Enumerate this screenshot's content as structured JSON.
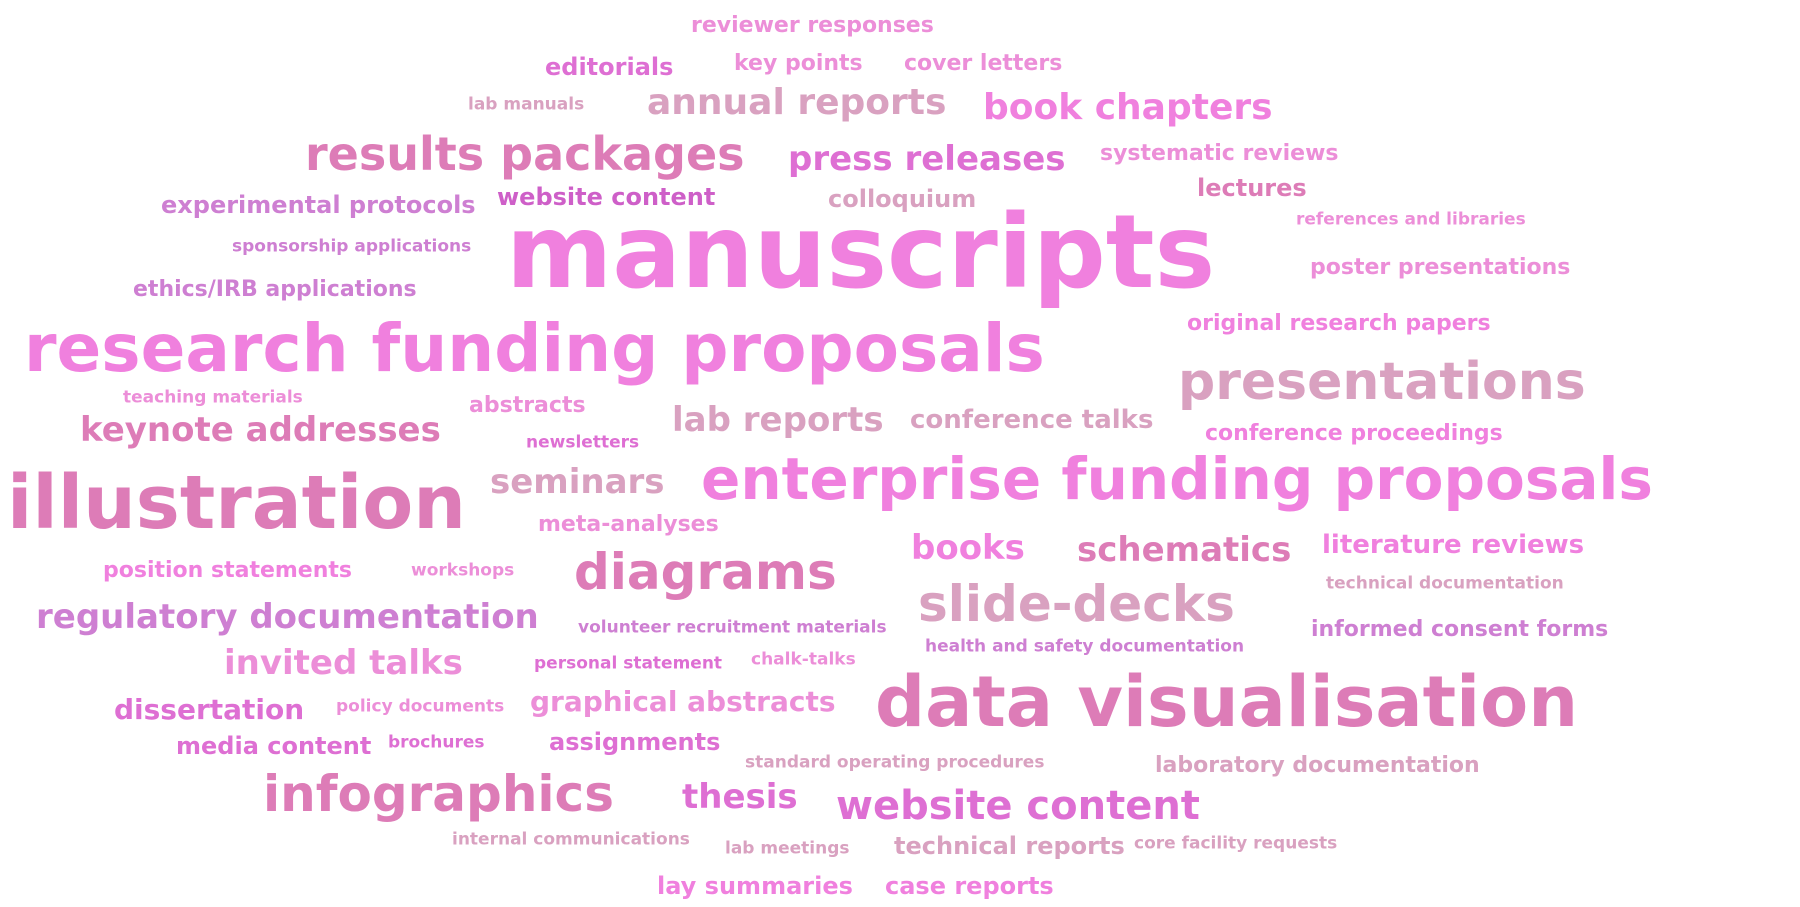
{
  "palette": {
    "pink": "#F080DE",
    "mauve": "#DD7CB7",
    "dusty_rose": "#D9A1C0",
    "orchid": "#DE6FD3",
    "violet": "#CE7FD2",
    "light_pink": "#EC8ED8"
  },
  "words": [
    {
      "text": "reviewer responses",
      "color": "#EC8ED8"
    },
    {
      "text": "editorials",
      "color": "#DE6FD3"
    },
    {
      "text": "key points",
      "color": "#EC8ED8"
    },
    {
      "text": "cover letters",
      "color": "#EC8ED8"
    },
    {
      "text": "lab manuals",
      "color": "#D9A1C0"
    },
    {
      "text": "annual reports",
      "color": "#D9A1C0"
    },
    {
      "text": "book chapters",
      "color": "#F080DE"
    },
    {
      "text": "results packages",
      "color": "#DD7CB7"
    },
    {
      "text": "press releases",
      "color": "#DE6FD3"
    },
    {
      "text": "systematic reviews",
      "color": "#EC8ED8"
    },
    {
      "text": "lectures",
      "color": "#DD7CB7"
    },
    {
      "text": "website content",
      "color": "#CE5FC8"
    },
    {
      "text": "colloquium",
      "color": "#D9A1C0"
    },
    {
      "text": "experimental protocols",
      "color": "#CE7FD2"
    },
    {
      "text": "references and libraries",
      "color": "#EC8ED8"
    },
    {
      "text": "sponsorship applications",
      "color": "#CE7FD2"
    },
    {
      "text": "manuscripts",
      "color": "#F080DE"
    },
    {
      "text": "poster presentations",
      "color": "#EC8ED8"
    },
    {
      "text": "ethics/IRB applications",
      "color": "#CE7FD2"
    },
    {
      "text": "original research papers",
      "color": "#F080DE"
    },
    {
      "text": "research funding proposals",
      "color": "#F080DE"
    },
    {
      "text": "presentations",
      "color": "#D9A1C0"
    },
    {
      "text": "teaching materials",
      "color": "#EC8ED8"
    },
    {
      "text": "abstracts",
      "color": "#EC8ED8"
    },
    {
      "text": "lab reports",
      "color": "#D9A1C0"
    },
    {
      "text": "conference talks",
      "color": "#D9A1C0"
    },
    {
      "text": "keynote addresses",
      "color": "#DD7CB7"
    },
    {
      "text": "newsletters",
      "color": "#DE6FD3"
    },
    {
      "text": "conference proceedings",
      "color": "#F080DE"
    },
    {
      "text": "illustration",
      "color": "#DD7CB7"
    },
    {
      "text": "seminars",
      "color": "#D9A1C0"
    },
    {
      "text": "enterprise funding proposals",
      "color": "#F080DE"
    },
    {
      "text": "meta-analyses",
      "color": "#EC8ED8"
    },
    {
      "text": "books",
      "color": "#F080DE"
    },
    {
      "text": "schematics",
      "color": "#DD7CB7"
    },
    {
      "text": "literature reviews",
      "color": "#F080DE"
    },
    {
      "text": "position statements",
      "color": "#F080DE"
    },
    {
      "text": "workshops",
      "color": "#EC8ED8"
    },
    {
      "text": "diagrams",
      "color": "#DD7CB7"
    },
    {
      "text": "technical documentation",
      "color": "#D9A1C0"
    },
    {
      "text": "slide-decks",
      "color": "#D9A1C0"
    },
    {
      "text": "regulatory documentation",
      "color": "#CE7FD2"
    },
    {
      "text": "volunteer recruitment materials",
      "color": "#CE7FD2"
    },
    {
      "text": "informed consent forms",
      "color": "#CE7FD2"
    },
    {
      "text": "health and safety documentation",
      "color": "#CE7FD2"
    },
    {
      "text": "invited talks",
      "color": "#EC8ED8"
    },
    {
      "text": "personal statement",
      "color": "#DE6FD3"
    },
    {
      "text": "chalk-talks",
      "color": "#EC8ED8"
    },
    {
      "text": "data visualisation",
      "color": "#DD7CB7"
    },
    {
      "text": "dissertation",
      "color": "#DE6FD3"
    },
    {
      "text": "policy documents",
      "color": "#EC8ED8"
    },
    {
      "text": "graphical abstracts",
      "color": "#EC8ED8"
    },
    {
      "text": "media content",
      "color": "#DE6FD3"
    },
    {
      "text": "brochures",
      "color": "#DE6FD3"
    },
    {
      "text": "assignments",
      "color": "#DE6FD3"
    },
    {
      "text": "standard operating procedures",
      "color": "#D9A1C0"
    },
    {
      "text": "laboratory documentation",
      "color": "#D9A1C0"
    },
    {
      "text": "infographics",
      "color": "#DD7CB7"
    },
    {
      "text": "thesis",
      "color": "#DE6FD3"
    },
    {
      "text": "website content",
      "color": "#DE6FD3"
    },
    {
      "text": "internal communications",
      "color": "#D9A1C0"
    },
    {
      "text": "lab meetings",
      "color": "#D9A1C0"
    },
    {
      "text": "technical reports",
      "color": "#D9A1C0"
    },
    {
      "text": "core facility requests",
      "color": "#D9A1C0"
    },
    {
      "text": "lay summaries",
      "color": "#F080DE"
    },
    {
      "text": "case reports",
      "color": "#F080DE"
    }
  ]
}
